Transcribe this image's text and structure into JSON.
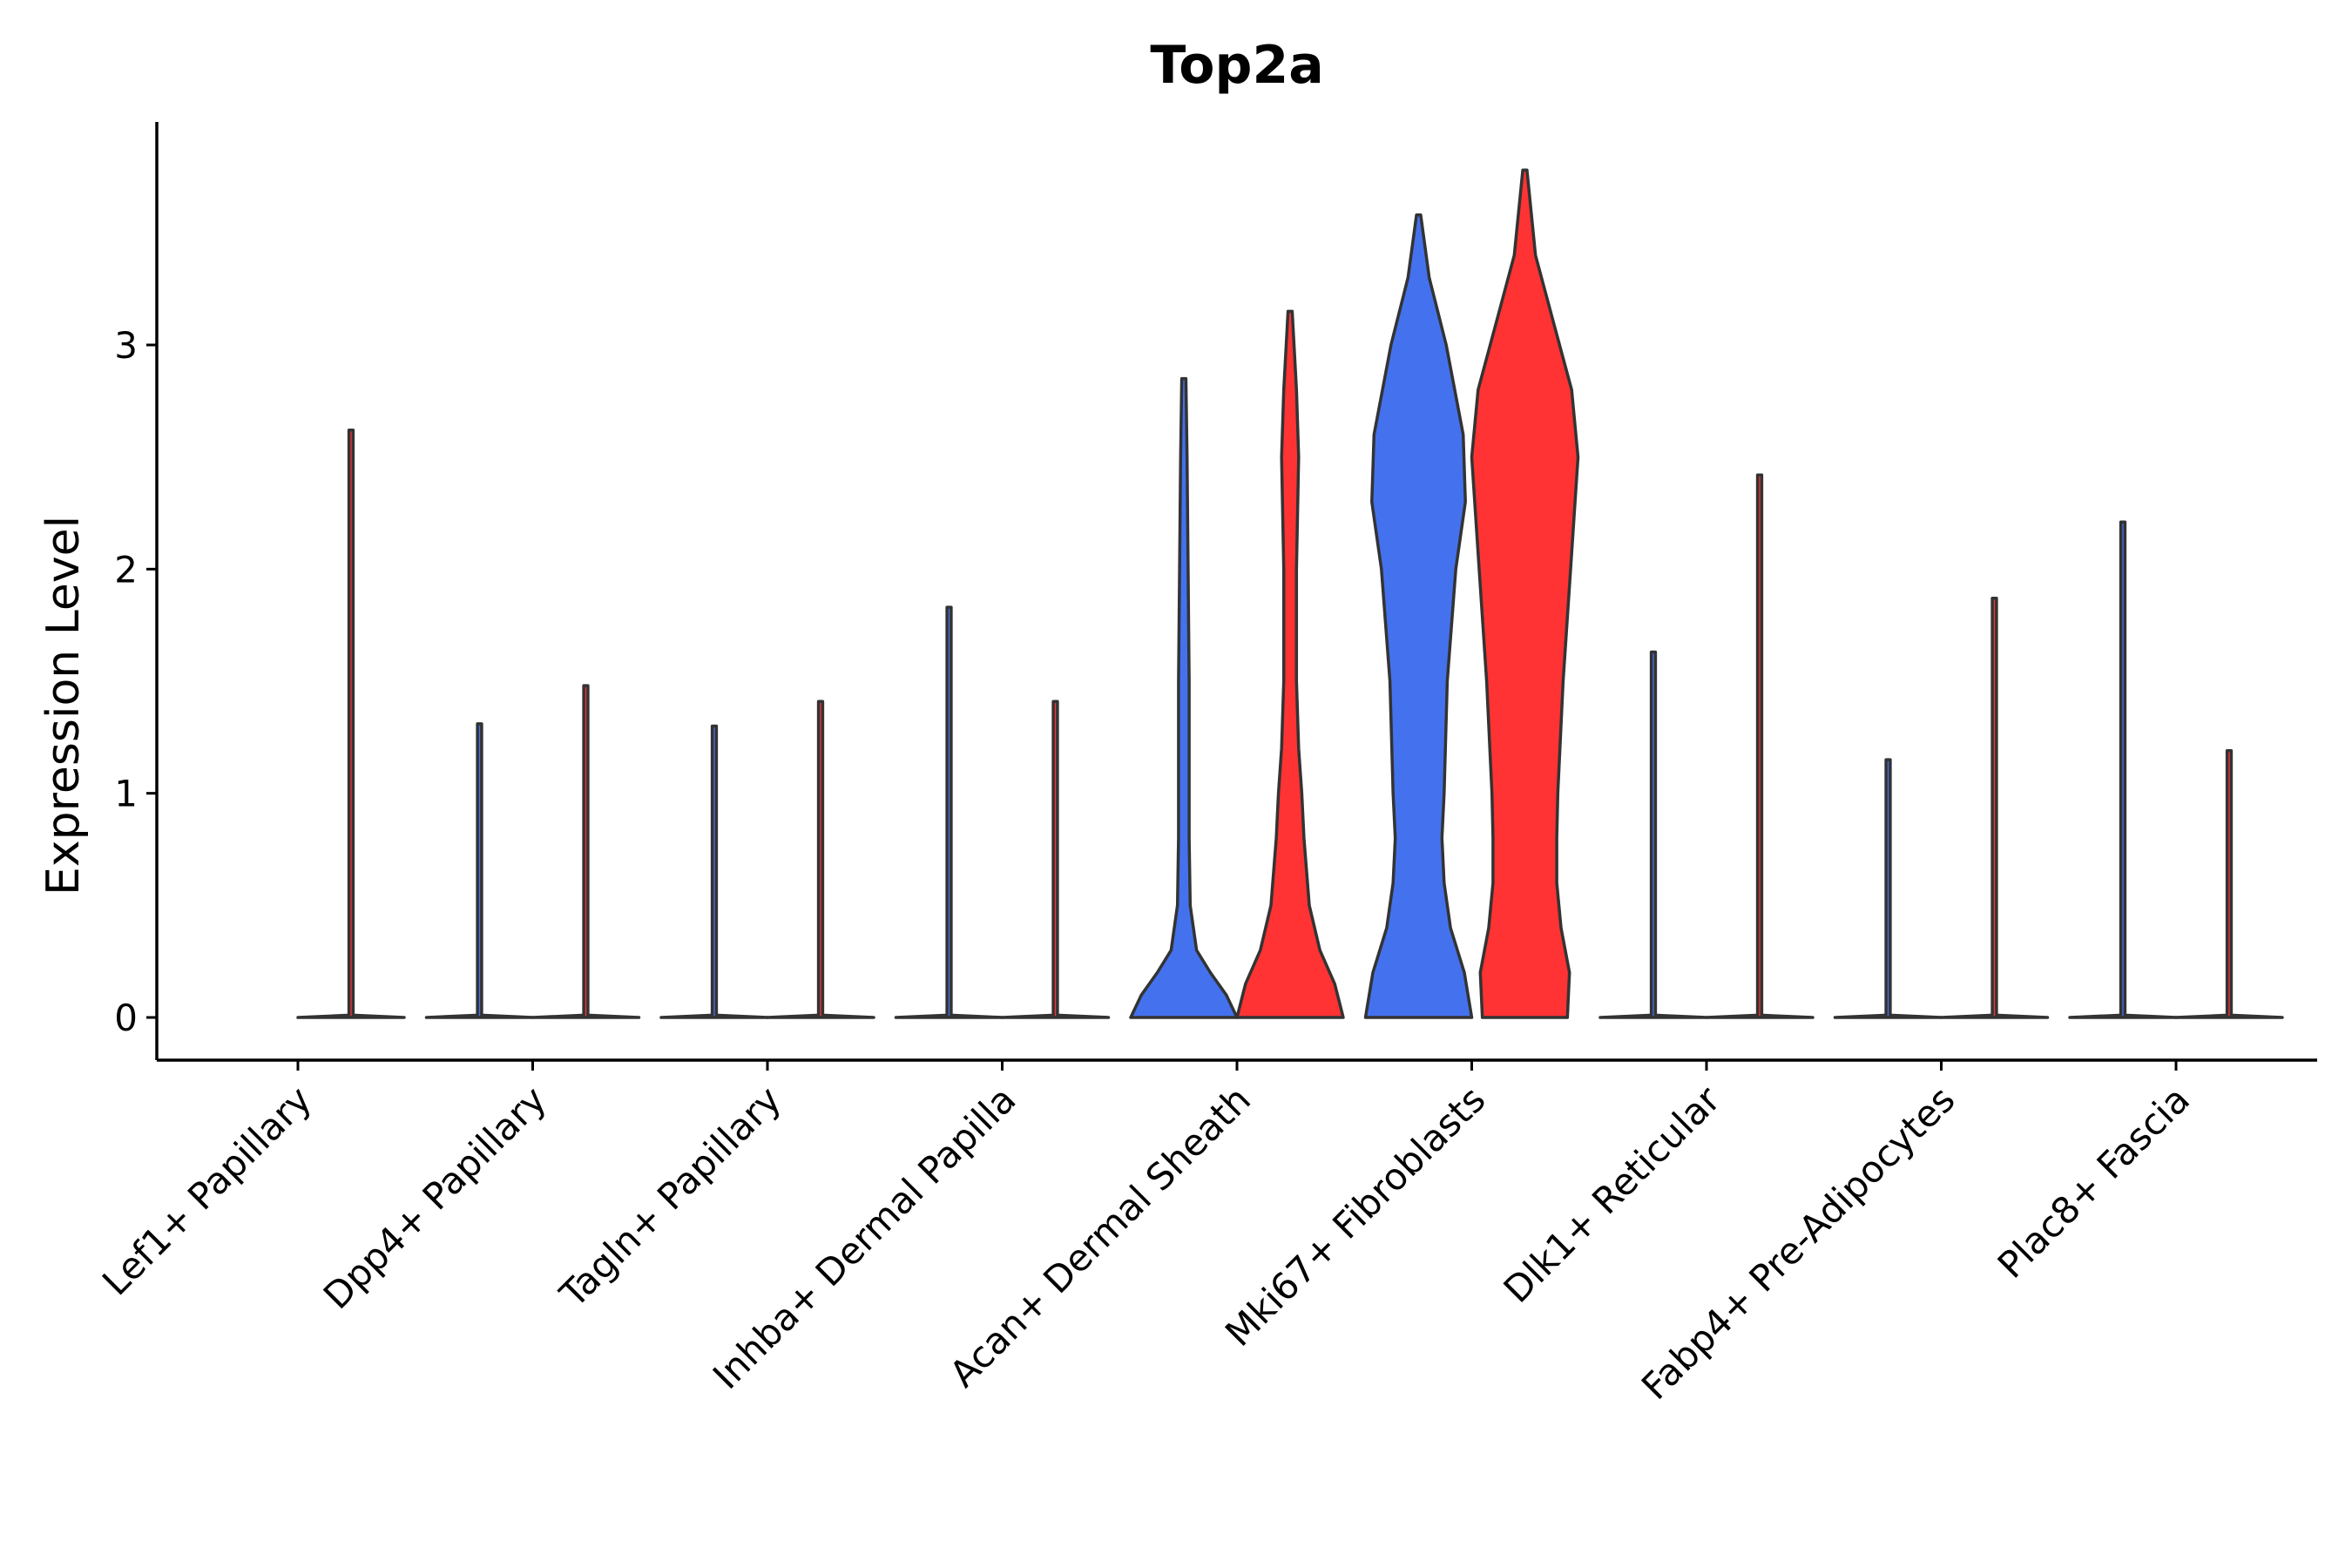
{
  "chart_data": {
    "type": "violin",
    "title": "Top2a",
    "xlabel": "",
    "ylabel": "Expression Level",
    "ylim": [
      -0.19,
      4.0
    ],
    "yticks": [
      0,
      1,
      2,
      3
    ],
    "grid": false,
    "legend": "none",
    "colors": {
      "group_a": "#4472EE",
      "group_b": "#FF3333",
      "outline": "#333333"
    },
    "categories": [
      "Lef1+ Papillary",
      "Dpp4+ Papillary",
      "Tagln+ Papillary",
      "Inhba+ Dermal Papilla",
      "Acan+ Dermal Sheath",
      "Mki67+ Fibroblasts",
      "Dlk1+ Reticular",
      "Fabp4+ Pre-Adipocytes",
      "Plac8+ Fascia"
    ],
    "violins": [
      {
        "name": "Lef1+ Papillary",
        "side": "right",
        "group": "group_b",
        "max": 2.62,
        "profile": [
          [
            0,
            0.5
          ],
          [
            0.01,
            0.02
          ],
          [
            2.62,
            0.02
          ]
        ]
      },
      {
        "name": "Dpp4+ Papillary",
        "side": "left",
        "group": "group_a",
        "max": 1.31,
        "profile": [
          [
            0,
            0.5
          ],
          [
            0.01,
            0.02
          ],
          [
            1.31,
            0.02
          ]
        ]
      },
      {
        "name": "Dpp4+ Papillary",
        "side": "right",
        "group": "group_b",
        "max": 1.48,
        "profile": [
          [
            0,
            0.5
          ],
          [
            0.01,
            0.02
          ],
          [
            1.48,
            0.02
          ]
        ]
      },
      {
        "name": "Tagln+ Papillary",
        "side": "left",
        "group": "group_a",
        "max": 1.3,
        "profile": [
          [
            0,
            0.5
          ],
          [
            0.01,
            0.02
          ],
          [
            1.3,
            0.02
          ]
        ]
      },
      {
        "name": "Tagln+ Papillary",
        "side": "right",
        "group": "group_b",
        "max": 1.41,
        "profile": [
          [
            0,
            0.5
          ],
          [
            0.01,
            0.02
          ],
          [
            1.41,
            0.02
          ]
        ]
      },
      {
        "name": "Inhba+ Dermal Papilla",
        "side": "left",
        "group": "group_a",
        "max": 1.83,
        "profile": [
          [
            0,
            0.5
          ],
          [
            0.01,
            0.02
          ],
          [
            1.83,
            0.02
          ]
        ]
      },
      {
        "name": "Inhba+ Dermal Papilla",
        "side": "right",
        "group": "group_b",
        "max": 1.41,
        "profile": [
          [
            0,
            0.5
          ],
          [
            0.01,
            0.02
          ],
          [
            1.41,
            0.02
          ]
        ]
      },
      {
        "name": "Acan+ Dermal Sheath",
        "side": "left",
        "group": "group_a",
        "max": 2.85,
        "profile": [
          [
            0,
            0.5
          ],
          [
            0.1,
            0.4
          ],
          [
            0.2,
            0.25
          ],
          [
            0.3,
            0.12
          ],
          [
            0.5,
            0.06
          ],
          [
            0.8,
            0.05
          ],
          [
            1.0,
            0.05
          ],
          [
            1.5,
            0.05
          ],
          [
            2.0,
            0.04
          ],
          [
            2.5,
            0.03
          ],
          [
            2.85,
            0.02
          ]
        ]
      },
      {
        "name": "Acan+ Dermal Sheath",
        "side": "right",
        "group": "group_b",
        "max": 3.15,
        "profile": [
          [
            0,
            0.5
          ],
          [
            0.15,
            0.42
          ],
          [
            0.3,
            0.28
          ],
          [
            0.5,
            0.18
          ],
          [
            0.8,
            0.13
          ],
          [
            1.0,
            0.11
          ],
          [
            1.2,
            0.08
          ],
          [
            1.5,
            0.06
          ],
          [
            2.0,
            0.06
          ],
          [
            2.5,
            0.08
          ],
          [
            2.8,
            0.06
          ],
          [
            3.15,
            0.02
          ]
        ]
      },
      {
        "name": "Mki67+ Fibroblasts",
        "side": "left",
        "group": "group_a",
        "max": 3.58,
        "profile": [
          [
            0,
            0.5
          ],
          [
            0.2,
            0.43
          ],
          [
            0.4,
            0.3
          ],
          [
            0.6,
            0.24
          ],
          [
            0.8,
            0.22
          ],
          [
            1.0,
            0.24
          ],
          [
            1.5,
            0.27
          ],
          [
            2.0,
            0.35
          ],
          [
            2.3,
            0.44
          ],
          [
            2.6,
            0.42
          ],
          [
            3.0,
            0.26
          ],
          [
            3.3,
            0.1
          ],
          [
            3.58,
            0.02
          ]
        ]
      },
      {
        "name": "Mki67+ Fibroblasts",
        "side": "right",
        "group": "group_b",
        "max": 3.78,
        "profile": [
          [
            0,
            0.4
          ],
          [
            0.2,
            0.42
          ],
          [
            0.4,
            0.34
          ],
          [
            0.6,
            0.3
          ],
          [
            0.8,
            0.3
          ],
          [
            1.0,
            0.31
          ],
          [
            1.5,
            0.36
          ],
          [
            2.0,
            0.43
          ],
          [
            2.5,
            0.5
          ],
          [
            2.8,
            0.44
          ],
          [
            3.1,
            0.27
          ],
          [
            3.4,
            0.1
          ],
          [
            3.78,
            0.02
          ]
        ]
      },
      {
        "name": "Dlk1+ Reticular",
        "side": "left",
        "group": "group_a",
        "max": 1.63,
        "profile": [
          [
            0,
            0.5
          ],
          [
            0.01,
            0.02
          ],
          [
            1.63,
            0.02
          ]
        ]
      },
      {
        "name": "Dlk1+ Reticular",
        "side": "right",
        "group": "group_b",
        "max": 2.42,
        "profile": [
          [
            0,
            0.5
          ],
          [
            0.01,
            0.02
          ],
          [
            2.42,
            0.02
          ]
        ]
      },
      {
        "name": "Fabp4+ Pre-Adipocytes",
        "side": "left",
        "group": "group_a",
        "max": 1.15,
        "profile": [
          [
            0,
            0.5
          ],
          [
            0.01,
            0.02
          ],
          [
            1.15,
            0.02
          ]
        ]
      },
      {
        "name": "Fabp4+ Pre-Adipocytes",
        "side": "right",
        "group": "group_b",
        "max": 1.87,
        "profile": [
          [
            0,
            0.5
          ],
          [
            0.01,
            0.02
          ],
          [
            1.87,
            0.02
          ]
        ]
      },
      {
        "name": "Plac8+ Fascia",
        "side": "left",
        "group": "group_a",
        "max": 2.21,
        "profile": [
          [
            0,
            0.5
          ],
          [
            0.01,
            0.02
          ],
          [
            2.21,
            0.02
          ]
        ]
      },
      {
        "name": "Plac8+ Fascia",
        "side": "right",
        "group": "group_b",
        "max": 1.19,
        "profile": [
          [
            0,
            0.5
          ],
          [
            0.01,
            0.02
          ],
          [
            1.19,
            0.02
          ]
        ]
      }
    ]
  }
}
